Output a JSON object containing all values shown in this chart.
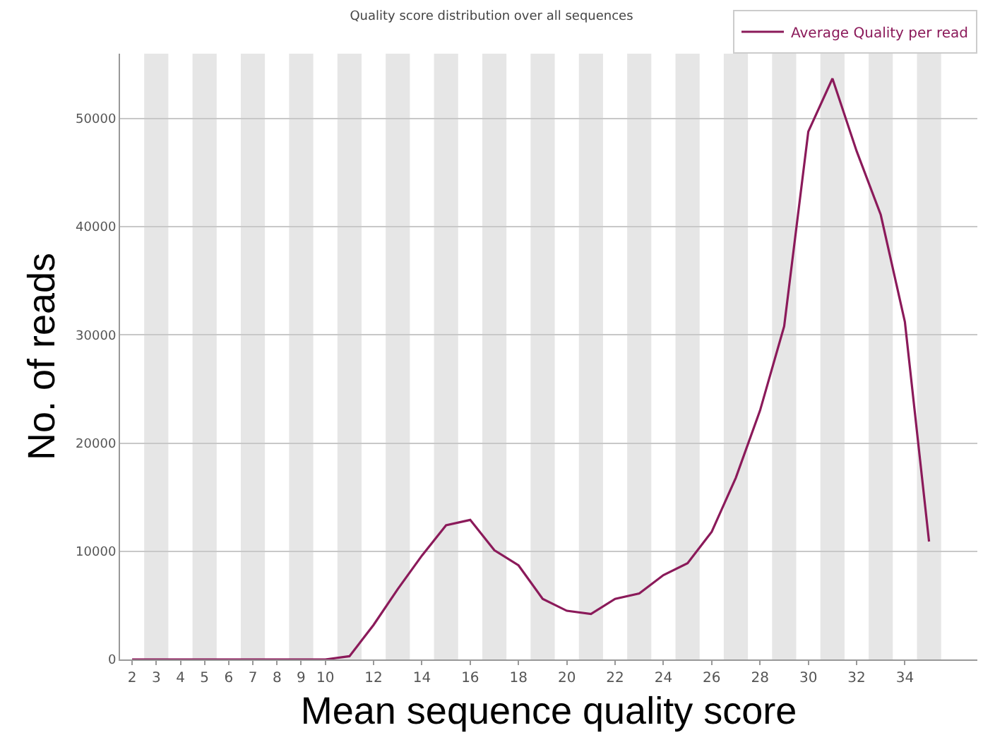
{
  "chart_data": {
    "type": "line",
    "title": "Quality score distribution over all sequences",
    "xlabel": "Mean sequence quality score",
    "ylabel": "No. of reads",
    "x": [
      2,
      3,
      4,
      5,
      6,
      7,
      8,
      9,
      10,
      11,
      12,
      13,
      14,
      15,
      16,
      17,
      18,
      19,
      20,
      21,
      22,
      23,
      24,
      25,
      26,
      27,
      28,
      29,
      30,
      31,
      32,
      33,
      34,
      35
    ],
    "series": [
      {
        "name": "Average Quality per read",
        "color": "#8b1a5a",
        "values": [
          0,
          0,
          0,
          0,
          0,
          0,
          0,
          0,
          0,
          300,
          3200,
          6500,
          9600,
          12400,
          12900,
          10100,
          8700,
          5600,
          4500,
          4200,
          5600,
          6100,
          7800,
          8900,
          11800,
          16800,
          23000,
          30800,
          48800,
          53700,
          47000,
          41100,
          31200,
          10900
        ]
      }
    ],
    "xlim": [
      1.5,
      37
    ],
    "xticks": [
      2,
      3,
      4,
      5,
      6,
      7,
      8,
      9,
      10,
      12,
      14,
      16,
      18,
      20,
      22,
      24,
      26,
      28,
      30,
      32,
      34
    ],
    "ylim": [
      0,
      56000
    ],
    "yticks": [
      0,
      10000,
      20000,
      30000,
      40000,
      50000
    ],
    "grid": "y",
    "legend": "top right",
    "marker": "none",
    "line_style": "solid",
    "bands": [
      {
        "axis": "x",
        "from": 2.5,
        "to": 3.5,
        "color": "#e6e6e6"
      },
      {
        "axis": "x",
        "from": 4.5,
        "to": 5.5,
        "color": "#e6e6e6"
      },
      {
        "axis": "x",
        "from": 6.5,
        "to": 7.5,
        "color": "#e6e6e6"
      },
      {
        "axis": "x",
        "from": 8.5,
        "to": 9.5,
        "color": "#e6e6e6"
      },
      {
        "axis": "x",
        "from": 10.5,
        "to": 11.5,
        "color": "#e6e6e6"
      },
      {
        "axis": "x",
        "from": 12.5,
        "to": 13.5,
        "color": "#e6e6e6"
      },
      {
        "axis": "x",
        "from": 14.5,
        "to": 15.5,
        "color": "#e6e6e6"
      },
      {
        "axis": "x",
        "from": 16.5,
        "to": 17.5,
        "color": "#e6e6e6"
      },
      {
        "axis": "x",
        "from": 18.5,
        "to": 19.5,
        "color": "#e6e6e6"
      },
      {
        "axis": "x",
        "from": 20.5,
        "to": 21.5,
        "color": "#e6e6e6"
      },
      {
        "axis": "x",
        "from": 22.5,
        "to": 23.5,
        "color": "#e6e6e6"
      },
      {
        "axis": "x",
        "from": 24.5,
        "to": 25.5,
        "color": "#e6e6e6"
      },
      {
        "axis": "x",
        "from": 26.5,
        "to": 27.5,
        "color": "#e6e6e6"
      },
      {
        "axis": "x",
        "from": 28.5,
        "to": 29.5,
        "color": "#e6e6e6"
      },
      {
        "axis": "x",
        "from": 30.5,
        "to": 31.5,
        "color": "#e6e6e6"
      },
      {
        "axis": "x",
        "from": 32.5,
        "to": 33.5,
        "color": "#e6e6e6"
      },
      {
        "axis": "x",
        "from": 34.5,
        "to": 35.5,
        "color": "#e6e6e6"
      }
    ]
  }
}
